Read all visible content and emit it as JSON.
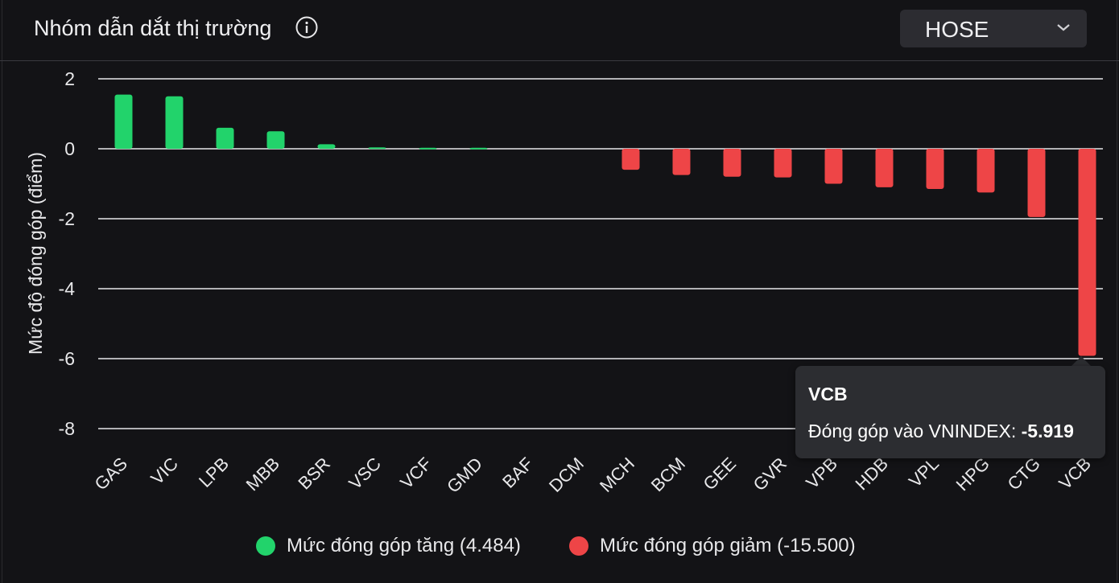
{
  "header": {
    "title": "Nhóm dẫn dắt thị trường",
    "exchange_selected": "HOSE"
  },
  "colors": {
    "positive": "#22d36b",
    "negative": "#ee4547",
    "grid": "#e8e8ea",
    "text": "#e8e8ea"
  },
  "chart_data": {
    "type": "bar",
    "title": "",
    "xlabel": "",
    "ylabel": "Mức độ đóng góp (điểm)",
    "ylim": [
      -8,
      2
    ],
    "yticks": [
      2,
      0,
      -2,
      -4,
      -6,
      -8
    ],
    "grid": true,
    "categories": [
      "GAS",
      "VIC",
      "LPB",
      "MBB",
      "BSR",
      "VSC",
      "VCF",
      "GMD",
      "BAF",
      "DCM",
      "MCH",
      "BCM",
      "GEE",
      "GVR",
      "VPB",
      "HDB",
      "VPL",
      "HPG",
      "CTG",
      "VCB"
    ],
    "values": [
      1.55,
      1.5,
      0.6,
      0.5,
      0.13,
      0.04,
      0.03,
      0.03,
      0.0,
      0.0,
      -0.6,
      -0.75,
      -0.8,
      -0.82,
      -1.0,
      -1.1,
      -1.15,
      -1.25,
      -1.95,
      -5.919
    ],
    "legend": [
      {
        "label": "Mức đóng góp tăng (4.484)",
        "color": "#22d36b"
      },
      {
        "label": "Mức đóng góp giảm (-15.500)",
        "color": "#ee4547"
      }
    ],
    "legend_position": "bottom"
  },
  "tooltip": {
    "title": "VCB",
    "label": "Đóng góp vào VNINDEX: ",
    "value": "-5.919"
  }
}
